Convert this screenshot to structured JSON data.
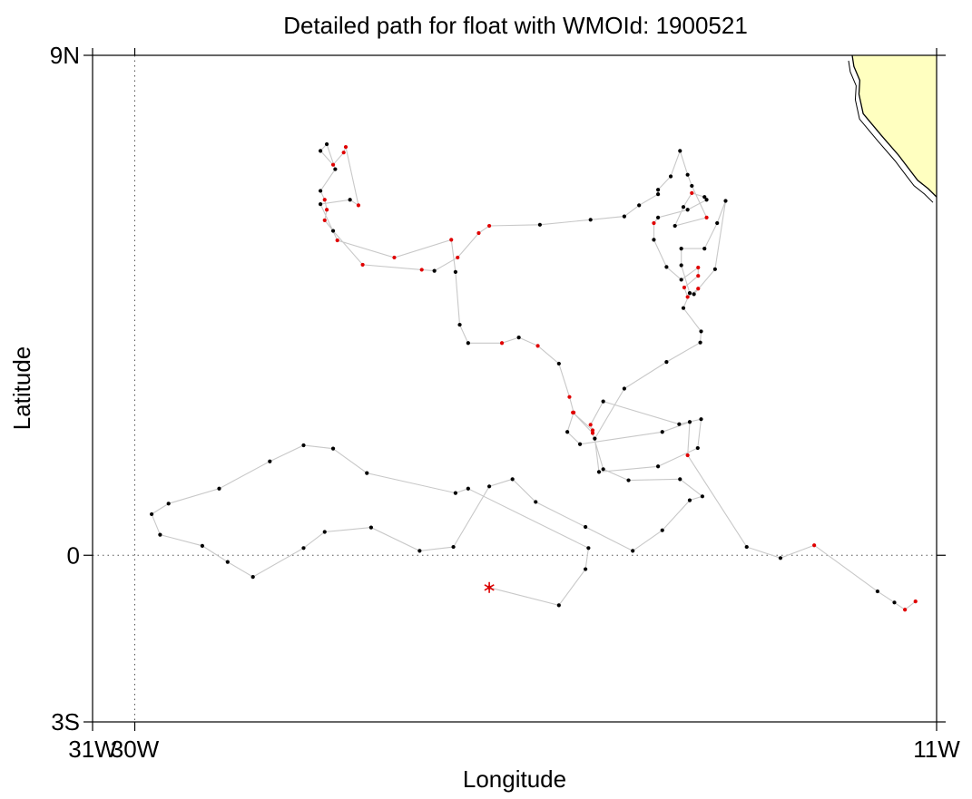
{
  "map": {
    "title": "Detailed path for float with WMOId: 1900521",
    "xlabel": "Longitude",
    "ylabel": "Latitude",
    "x_ticks": [
      {
        "value": -31,
        "label": "31W"
      },
      {
        "value": -30,
        "label": "30W"
      },
      {
        "value": -11,
        "label": "11W"
      }
    ],
    "y_ticks": [
      {
        "value": 9,
        "label": "9N"
      },
      {
        "value": 0,
        "label": "0"
      },
      {
        "value": -3,
        "label": "3S"
      }
    ],
    "xlim": [
      -31,
      -11
    ],
    "ylim": [
      -3,
      9
    ],
    "reference_lines": [
      {
        "axis": "x",
        "value": -30,
        "style": "dotted"
      },
      {
        "axis": "y",
        "value": 0,
        "style": "dotted"
      }
    ],
    "land_color": "#ffffc0",
    "coast_color": "#000000",
    "track_color": "#c8c8c8",
    "point_color": "#000000",
    "highlight_color": "#e00000",
    "start_marker": {
      "lon": -21.6,
      "lat": -0.58,
      "symbol": "asterisk",
      "color": "#e00000"
    },
    "coastline": [
      [
        -13.0,
        9.0
      ],
      [
        -12.96,
        8.8
      ],
      [
        -12.82,
        8.55
      ],
      [
        -12.84,
        8.3
      ],
      [
        -12.74,
        7.95
      ],
      [
        -12.52,
        7.75
      ],
      [
        -12.3,
        7.55
      ],
      [
        -11.9,
        7.2
      ],
      [
        -11.62,
        6.92
      ],
      [
        -11.45,
        6.75
      ],
      [
        -11.2,
        6.6
      ],
      [
        -11.0,
        6.45
      ]
    ],
    "track": [
      [
        -21.6,
        -0.58,
        0
      ],
      [
        -19.95,
        -0.9,
        0
      ],
      [
        -19.32,
        -0.25,
        0
      ],
      [
        -19.25,
        0.13,
        0
      ],
      [
        -22.1,
        1.2,
        0
      ],
      [
        -22.4,
        1.12,
        0
      ],
      [
        -24.5,
        1.48,
        0
      ],
      [
        -25.3,
        1.92,
        0
      ],
      [
        -26.0,
        1.98,
        0
      ],
      [
        -26.8,
        1.69,
        0
      ],
      [
        -28.0,
        1.2,
        0
      ],
      [
        -29.2,
        0.93,
        0
      ],
      [
        -29.6,
        0.74,
        0
      ],
      [
        -29.4,
        0.37,
        0
      ],
      [
        -28.4,
        0.17,
        0
      ],
      [
        -27.8,
        -0.12,
        0
      ],
      [
        -27.2,
        -0.39,
        0
      ],
      [
        -26.0,
        0.13,
        0
      ],
      [
        -25.5,
        0.42,
        0
      ],
      [
        -24.4,
        0.5,
        0
      ],
      [
        -23.25,
        0.08,
        0
      ],
      [
        -22.45,
        0.15,
        0
      ],
      [
        -21.6,
        1.24,
        0
      ],
      [
        -21.05,
        1.37,
        0
      ],
      [
        -20.5,
        0.96,
        0
      ],
      [
        -19.32,
        0.51,
        0
      ],
      [
        -18.2,
        0.08,
        0
      ],
      [
        -17.5,
        0.45,
        0
      ],
      [
        -16.85,
        0.99,
        0
      ],
      [
        -16.55,
        1.06,
        0
      ],
      [
        -17.08,
        1.37,
        0
      ],
      [
        -18.3,
        1.35,
        0
      ],
      [
        -18.9,
        1.55,
        0
      ],
      [
        -19.15,
        2.2,
        1
      ],
      [
        -19.62,
        2.57,
        1
      ],
      [
        -19.15,
        2.25,
        1
      ],
      [
        -19.2,
        2.35,
        1
      ],
      [
        -18.9,
        2.77,
        0
      ],
      [
        -17.1,
        2.36,
        0
      ],
      [
        -16.58,
        2.45,
        0
      ],
      [
        -16.66,
        1.93,
        0
      ],
      [
        -17.6,
        1.6,
        0
      ],
      [
        -19.0,
        1.5,
        0
      ],
      [
        -19.1,
        2.1,
        0
      ],
      [
        -18.4,
        3.0,
        0
      ],
      [
        -17.4,
        3.48,
        0
      ],
      [
        -16.6,
        3.83,
        0
      ],
      [
        -16.58,
        4.03,
        0
      ],
      [
        -17.0,
        4.45,
        0
      ],
      [
        -16.85,
        4.72,
        0
      ],
      [
        -17.05,
        5.22,
        0
      ],
      [
        -17.05,
        5.52,
        0
      ],
      [
        -16.5,
        5.52,
        0
      ],
      [
        -16.2,
        5.98,
        0
      ],
      [
        -16.0,
        6.38,
        0
      ],
      [
        -16.25,
        5.15,
        0
      ],
      [
        -16.75,
        4.7,
        0
      ],
      [
        -16.65,
        4.8,
        1
      ],
      [
        -16.9,
        4.65,
        1
      ],
      [
        -16.98,
        4.82,
        1
      ],
      [
        -16.65,
        5.03,
        1
      ],
      [
        -16.65,
        5.18,
        1
      ],
      [
        -17.05,
        4.96,
        0
      ],
      [
        -17.4,
        5.19,
        0
      ],
      [
        -17.7,
        5.68,
        0
      ],
      [
        -17.7,
        5.98,
        1
      ],
      [
        -17.6,
        6.08,
        0
      ],
      [
        -16.9,
        6.22,
        0
      ],
      [
        -16.45,
        6.4,
        0
      ],
      [
        -16.5,
        6.45,
        0
      ],
      [
        -16.8,
        6.52,
        1
      ],
      [
        -17.0,
        6.27,
        0
      ],
      [
        -17.2,
        5.93,
        0
      ],
      [
        -16.45,
        6.08,
        1
      ],
      [
        -16.8,
        6.65,
        0
      ],
      [
        -16.9,
        6.85,
        0
      ],
      [
        -17.08,
        7.28,
        0
      ],
      [
        -17.3,
        6.82,
        0
      ],
      [
        -17.6,
        6.58,
        0
      ],
      [
        -17.6,
        6.5,
        0
      ],
      [
        -18.05,
        6.3,
        0
      ],
      [
        -18.4,
        6.1,
        0
      ],
      [
        -19.2,
        6.04,
        0
      ],
      [
        -20.4,
        5.95,
        0
      ],
      [
        -21.6,
        5.93,
        1
      ],
      [
        -21.85,
        5.8,
        1
      ],
      [
        -22.35,
        5.36,
        1
      ],
      [
        -22.9,
        5.12,
        0
      ],
      [
        -23.2,
        5.14,
        1
      ],
      [
        -24.6,
        5.23,
        1
      ],
      [
        -25.3,
        5.84,
        0
      ],
      [
        -25.5,
        6.03,
        1
      ],
      [
        -25.45,
        6.22,
        1
      ],
      [
        -25.5,
        6.4,
        1
      ],
      [
        -25.6,
        6.56,
        0
      ],
      [
        -25.25,
        6.95,
        0
      ],
      [
        -25.45,
        7.4,
        0
      ],
      [
        -25.6,
        7.28,
        0
      ],
      [
        -25.3,
        7.03,
        1
      ],
      [
        -25.05,
        7.25,
        1
      ],
      [
        -25.0,
        7.35,
        1
      ],
      [
        -24.7,
        6.3,
        1
      ],
      [
        -24.9,
        6.4,
        0
      ],
      [
        -25.6,
        6.32,
        0
      ],
      [
        -25.2,
        5.67,
        1
      ],
      [
        -23.85,
        5.36,
        1
      ],
      [
        -22.5,
        5.68,
        1
      ],
      [
        -22.4,
        5.1,
        0
      ],
      [
        -22.3,
        4.15,
        0
      ],
      [
        -22.1,
        3.82,
        0
      ],
      [
        -21.3,
        3.82,
        1
      ],
      [
        -20.9,
        3.92,
        0
      ],
      [
        -20.45,
        3.77,
        1
      ],
      [
        -19.95,
        3.45,
        0
      ],
      [
        -19.7,
        2.85,
        1
      ],
      [
        -19.6,
        2.57,
        1
      ],
      [
        -19.75,
        2.22,
        0
      ],
      [
        -19.45,
        2.0,
        0
      ],
      [
        -17.5,
        2.22,
        0
      ],
      [
        -16.85,
        2.4,
        0
      ],
      [
        -16.9,
        1.8,
        1
      ],
      [
        -15.5,
        0.15,
        0
      ],
      [
        -14.7,
        -0.05,
        0
      ],
      [
        -13.9,
        0.18,
        1
      ],
      [
        -12.4,
        -0.65,
        0
      ],
      [
        -12.0,
        -0.85,
        0
      ],
      [
        -11.75,
        -0.98,
        1
      ],
      [
        -11.5,
        -0.83,
        1
      ]
    ]
  }
}
